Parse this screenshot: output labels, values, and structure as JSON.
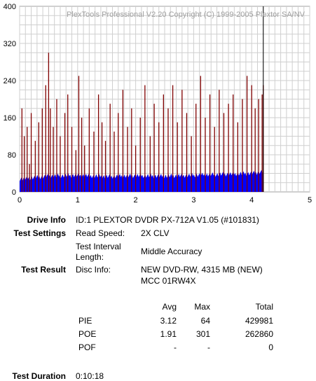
{
  "chart_data": {
    "type": "bar",
    "watermark": "PlexTools Professional V2.20 Copyright (C) 1999-2005 Plextor SA/NV",
    "xlim": [
      0,
      5
    ],
    "ylim": [
      0,
      400
    ],
    "x_ticks": [
      "0",
      "1",
      "2",
      "3",
      "4",
      "5"
    ],
    "y_ticks": [
      "0",
      "80",
      "160",
      "240",
      "320",
      "400"
    ],
    "grid": true,
    "series": [
      {
        "color": "#0000ff",
        "description_level": "blue fill with tops mostly between 25 and 45, rising slightly toward the end",
        "x": [
          0.0,
          0.5,
          1.0,
          1.5,
          2.0,
          2.5,
          3.0,
          3.5,
          4.0,
          4.2
        ],
        "values": [
          28,
          34,
          36,
          33,
          35,
          34,
          36,
          38,
          40,
          44
        ]
      },
      {
        "color": "#800000",
        "spikes_x": [
          0.04,
          0.08,
          0.13,
          0.17,
          0.2,
          0.27,
          0.33,
          0.39,
          0.45,
          0.5,
          0.53,
          0.58,
          0.64,
          0.7,
          0.78,
          0.83,
          0.9,
          0.97,
          1.02,
          1.07,
          1.12,
          1.2,
          1.28,
          1.36,
          1.42,
          1.48,
          1.56,
          1.63,
          1.7,
          1.78,
          1.86,
          1.93,
          2.0,
          2.08,
          2.16,
          2.25,
          2.32,
          2.4,
          2.48,
          2.56,
          2.64,
          2.72,
          2.8,
          2.88,
          2.96,
          3.04,
          3.12,
          3.2,
          3.28,
          3.36,
          3.44,
          3.52,
          3.6,
          3.68,
          3.76,
          3.84,
          3.92,
          4.0,
          4.06,
          4.12,
          4.18,
          4.2
        ],
        "spikes_y": [
          180,
          120,
          140,
          60,
          170,
          110,
          150,
          180,
          230,
          300,
          180,
          140,
          200,
          120,
          170,
          210,
          140,
          90,
          250,
          160,
          100,
          180,
          130,
          210,
          150,
          110,
          190,
          130,
          170,
          220,
          140,
          180,
          100,
          160,
          230,
          120,
          190,
          150,
          210,
          180,
          230,
          150,
          220,
          170,
          120,
          190,
          250,
          160,
          210,
          140,
          220,
          170,
          190,
          210,
          150,
          200,
          250,
          230,
          180,
          200,
          210,
          230
        ]
      }
    ],
    "cursor_x": 4.2
  },
  "info": {
    "drive_info_label": "Drive Info",
    "drive_info_value": "ID:1 PLEXTOR DVDR  PX-712A  V1.05 (#101831)",
    "test_settings_label": "Test Settings",
    "read_speed_label": "Read Speed:",
    "read_speed_value": "2X CLV",
    "interval_label_1": "Test Interval",
    "interval_label_2": "Length:",
    "interval_value": "Middle Accuracy",
    "test_result_label": "Test Result",
    "disc_info_label": "Disc Info:",
    "disc_info_value_1": "NEW DVD-RW, 4315 MB (NEW)",
    "disc_info_value_2": "MCC 01RW4X",
    "test_duration_label": "Test Duration",
    "test_duration_value": "0:10:18"
  },
  "results_table": {
    "headers": [
      "Avg",
      "Max",
      "Total"
    ],
    "rows": [
      {
        "name": "PIE",
        "avg": "3.12",
        "max": "64",
        "total": "429981"
      },
      {
        "name": "POE",
        "avg": "1.91",
        "max": "301",
        "total": "262860"
      },
      {
        "name": "POF",
        "avg": "-",
        "max": "-",
        "total": "0"
      }
    ]
  }
}
